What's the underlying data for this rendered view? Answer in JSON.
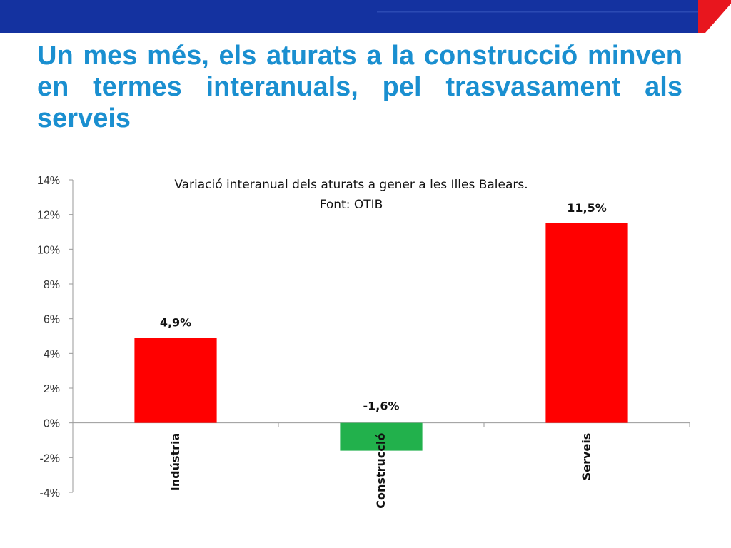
{
  "slide": {
    "title": "Un mes més, els aturats a la construcció minven en termes interanuals, pel trasvasament als serveis"
  },
  "colors": {
    "banner_blue": "#1432a0",
    "banner_red": "#e8161e",
    "title_blue": "#1a8fd0",
    "positive_bar": "#ff0000",
    "negative_bar": "#22b14c"
  },
  "chart_data": {
    "type": "bar",
    "title": "Variació interanual dels aturats a gener a les Illes Balears.",
    "subtitle": "Font: OTIB",
    "categories": [
      "Indústria",
      "Construcció",
      "Serveis"
    ],
    "values": [
      4.9,
      -1.6,
      11.5
    ],
    "data_labels": [
      "4,9%",
      "-1,6%",
      "11,5%"
    ],
    "ylim": [
      -4,
      14
    ],
    "yticks": [
      14,
      12,
      10,
      8,
      6,
      4,
      2,
      0,
      -2,
      -4
    ],
    "ytick_labels": [
      "14%",
      "12%",
      "10%",
      "8%",
      "6%",
      "4%",
      "2%",
      "0%",
      "-2%",
      "-4%"
    ],
    "grid": false,
    "legend": "none"
  }
}
